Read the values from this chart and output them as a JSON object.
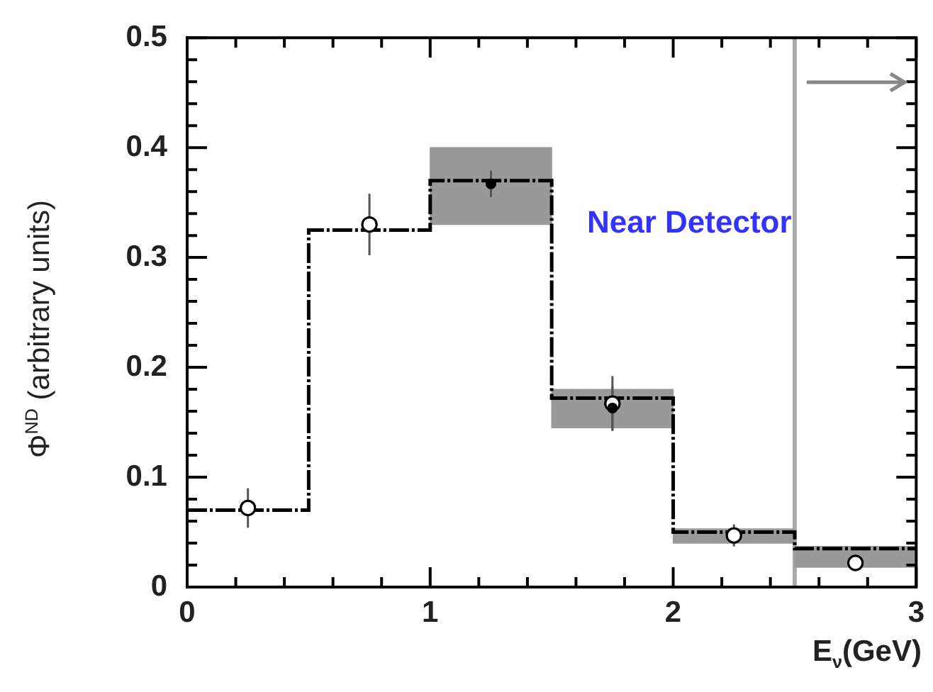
{
  "chart_data": {
    "type": "bar",
    "xlabel": "E$_{ν}$(GeV)",
    "ylabel": "Φ$^{ND}$ (arbitrary units)",
    "annotations": [
      "Near Detector"
    ],
    "xlim": [
      0,
      3
    ],
    "ylim": [
      0,
      0.5
    ],
    "xticks": [
      0,
      {
        "value": 0.2,
        "label": null
      },
      {
        "value": 0.4,
        "label": null
      },
      {
        "value": 0.6,
        "label": null
      },
      {
        "value": 0.8,
        "label": null
      },
      1,
      {
        "value": 1.2,
        "label": null
      },
      {
        "value": 1.4,
        "label": null
      },
      {
        "value": 1.6,
        "label": null
      },
      {
        "value": 1.8,
        "label": null
      },
      2,
      {
        "value": 2.2,
        "label": null
      },
      {
        "value": 2.4,
        "label": null
      },
      {
        "value": 2.6,
        "label": null
      },
      {
        "value": 2.8,
        "label": null
      },
      3
    ],
    "yticks": [
      0,
      {
        "value": 0.02,
        "label": null
      },
      {
        "value": 0.04,
        "label": null
      },
      {
        "value": 0.06,
        "label": null
      },
      {
        "value": 0.08,
        "label": null
      },
      0.1,
      {
        "value": 0.12,
        "label": null
      },
      {
        "value": 0.14,
        "label": null
      },
      {
        "value": 0.16,
        "label": null
      },
      {
        "value": 0.18,
        "label": null
      },
      0.2,
      {
        "value": 0.22,
        "label": null
      },
      {
        "value": 0.24,
        "label": null
      },
      {
        "value": 0.26,
        "label": null
      },
      {
        "value": 0.28,
        "label": null
      },
      0.3,
      {
        "value": 0.32,
        "label": null
      },
      {
        "value": 0.34,
        "label": null
      },
      {
        "value": 0.36,
        "label": null
      },
      {
        "value": 0.38,
        "label": null
      },
      0.4,
      {
        "value": 0.42,
        "label": null
      },
      {
        "value": 0.44,
        "label": null
      },
      {
        "value": 0.46,
        "label": null
      },
      {
        "value": 0.48,
        "label": null
      },
      0.5
    ],
    "ref_lines": [
      {
        "axis": "x",
        "value": 2.5,
        "color": "#aaaaaa"
      }
    ],
    "series": [
      {
        "color": "#999999",
        "x": [
          1.25,
          1.75,
          2.25,
          2.75
        ],
        "base": [
          0.33,
          0.145,
          0.04,
          0.018
        ],
        "values": [
          0.07,
          0.035,
          0.013,
          0.019
        ]
      },
      {
        "type": "step",
        "color": "#000000",
        "line_style": "dashed",
        "marker": "none",
        "x": [
          0,
          0.5,
          1,
          1.5,
          2,
          2.5,
          3
        ],
        "values": [
          0.07,
          0.325,
          0.37,
          0.172,
          0.05,
          0.035,
          0.035
        ]
      },
      {
        "type": "scatter",
        "color": "#ffffff",
        "marker": "circle",
        "x": [
          0.25,
          0.75,
          1.75,
          2.25,
          2.75
        ],
        "values": [
          0.072,
          0.33,
          0.167,
          0.047,
          0.022
        ],
        "errors": [
          0.018,
          0.028,
          0.025,
          0.01,
          0.006
        ]
      },
      {
        "type": "scatter",
        "color": "#000000",
        "marker": "circle",
        "x": [
          1.25,
          1.75
        ],
        "values": [
          0.367,
          0.163
        ],
        "errors": [
          0.012,
          0.02
        ]
      }
    ]
  }
}
